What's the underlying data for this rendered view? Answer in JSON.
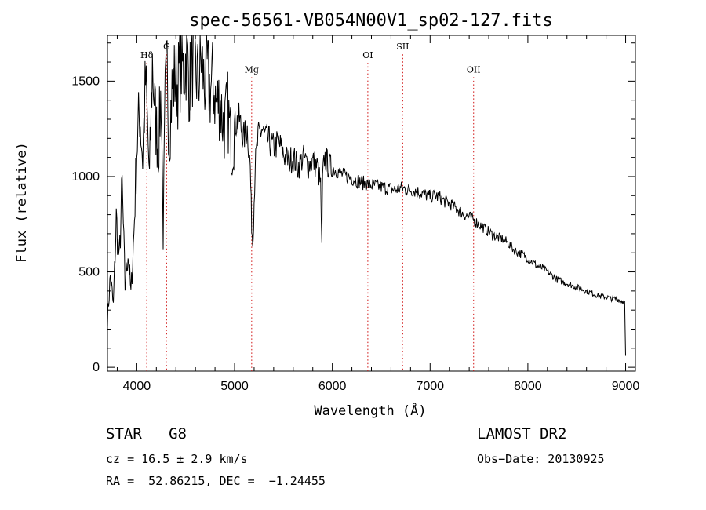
{
  "chart_data": {
    "type": "line",
    "title": "spec-56561-VB054N00V1_sp02-127.fits",
    "xlabel": "Wavelength (Å)",
    "ylabel": "Flux (relative)",
    "xlim": [
      3700,
      9100
    ],
    "ylim": [
      -20,
      1740
    ],
    "xticks": [
      4000,
      5000,
      6000,
      7000,
      8000,
      9000
    ],
    "yticks": [
      0,
      500,
      1000,
      1500
    ],
    "grid": false,
    "series": [
      {
        "values_note": "",
        "x": [
          3700,
          3730,
          3760,
          3790,
          3820,
          3850,
          3880,
          3910,
          3940,
          3970,
          4000,
          4030,
          4060,
          4090,
          4110,
          4130,
          4160,
          4190,
          4220,
          4250,
          4270,
          4290,
          4310,
          4330,
          4360,
          4390,
          4420,
          4450,
          4480,
          4510,
          4540,
          4570,
          4600,
          4630,
          4660,
          4690,
          4720,
          4750,
          4780,
          4810,
          4850,
          4890,
          4930,
          4970,
          5010,
          5050,
          5090,
          5130,
          5160,
          5175,
          5185,
          5195,
          5210,
          5240,
          5280,
          5320,
          5360,
          5400,
          5450,
          5500,
          5550,
          5600,
          5650,
          5700,
          5750,
          5800,
          5850,
          5880,
          5893,
          5900,
          5920,
          5960,
          6000,
          6050,
          6100,
          6150,
          6200,
          6250,
          6300,
          6350,
          6400,
          6450,
          6500,
          6550,
          6600,
          6650,
          6700,
          6750,
          6800,
          6850,
          6900,
          6950,
          7000,
          7050,
          7100,
          7150,
          7200,
          7250,
          7300,
          7350,
          7400,
          7450,
          7500,
          7550,
          7600,
          7650,
          7700,
          7750,
          7800,
          7850,
          7900,
          7950,
          8000,
          8050,
          8100,
          8150,
          8200,
          8250,
          8300,
          8350,
          8400,
          8450,
          8500,
          8550,
          8600,
          8650,
          8700,
          8750,
          8800,
          8850,
          8900,
          8950,
          8990,
          9000
        ],
        "y": [
          250,
          480,
          320,
          780,
          550,
          950,
          420,
          610,
          380,
          700,
          1150,
          1350,
          1100,
          1500,
          1250,
          980,
          1600,
          1300,
          1150,
          1450,
          700,
          1380,
          1580,
          1200,
          1450,
          1520,
          1480,
          1600,
          1550,
          1650,
          1480,
          1600,
          1550,
          1500,
          1620,
          1480,
          1550,
          1450,
          1500,
          1380,
          1400,
          1250,
          1350,
          1150,
          1280,
          1300,
          1200,
          1250,
          1050,
          750,
          650,
          780,
          1050,
          1200,
          1250,
          1200,
          1180,
          1150,
          1180,
          1120,
          1080,
          1100,
          1050,
          1100,
          1060,
          1080,
          1050,
          950,
          620,
          980,
          1100,
          1060,
          1040,
          1030,
          1010,
          1000,
          990,
          980,
          970,
          960,
          955,
          950,
          945,
          940,
          935,
          930,
          940,
          935,
          930,
          925,
          915,
          905,
          895,
          900,
          890,
          870,
          860,
          840,
          820,
          800,
          790,
          770,
          750,
          730,
          710,
          690,
          680,
          670,
          650,
          620,
          600,
          590,
          570,
          550,
          530,
          520,
          500,
          480,
          460,
          450,
          440,
          430,
          420,
          410,
          400,
          390,
          380,
          370,
          370,
          360,
          360,
          350,
          340,
          60
        ]
      }
    ],
    "annotations": [
      {
        "label": "Hδ",
        "x": 4102,
        "label_y": 1620
      },
      {
        "label": "G",
        "x": 4305,
        "label_y": 1665
      },
      {
        "label": "Mg",
        "x": 5175,
        "label_y": 1545
      },
      {
        "label": "OI",
        "x": 6363,
        "label_y": 1620
      },
      {
        "label": "SII",
        "x": 6720,
        "label_y": 1665
      },
      {
        "label": "OII",
        "x": 7445,
        "label_y": 1545
      }
    ]
  },
  "info": {
    "class_label": "STAR   G8",
    "survey": "LAMOST DR2",
    "redshift": "cz = 16.5 ± 2.9 km/s",
    "obs_date": "Obs−Date: 20130925",
    "coords": "RA =  52.86215, DEC =  −1.24455"
  }
}
